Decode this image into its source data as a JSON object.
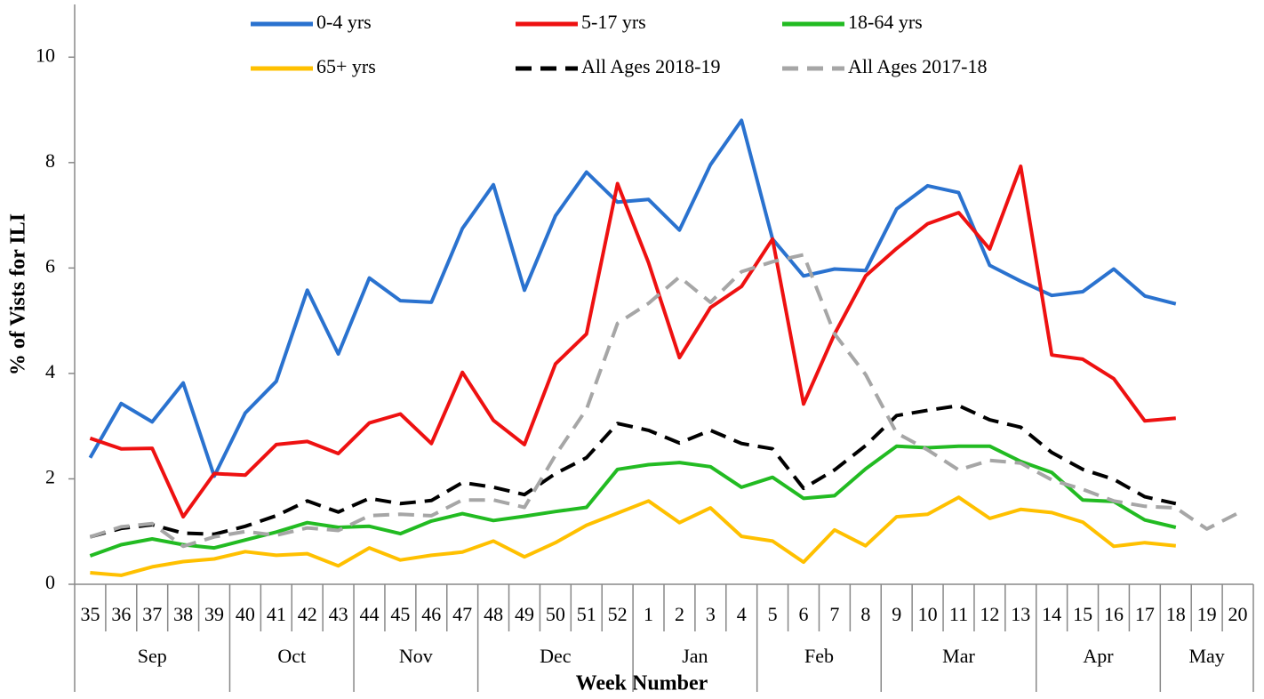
{
  "chart_data": {
    "type": "line",
    "y_label": "% of Vists for ILI",
    "x_label": "Week Number",
    "ylim": [
      0,
      11
    ],
    "yticks": [
      0,
      2,
      4,
      6,
      8,
      10
    ],
    "grid": false,
    "legend": "top",
    "category_groups": [
      {
        "label": "Sep",
        "categories": [
          "35",
          "36",
          "37",
          "38",
          "39"
        ]
      },
      {
        "label": "Oct",
        "categories": [
          "40",
          "41",
          "42",
          "43"
        ]
      },
      {
        "label": "Nov",
        "categories": [
          "44",
          "45",
          "46",
          "47"
        ]
      },
      {
        "label": "Dec",
        "categories": [
          "48",
          "49",
          "50",
          "51",
          "52"
        ]
      },
      {
        "label": "Jan",
        "categories": [
          "1",
          "2",
          "3",
          "4"
        ]
      },
      {
        "label": "Feb",
        "categories": [
          "5",
          "6",
          "7",
          "8"
        ]
      },
      {
        "label": "Mar",
        "categories": [
          "9",
          "10",
          "11",
          "12",
          "13"
        ]
      },
      {
        "label": "Apr",
        "categories": [
          "14",
          "15",
          "16",
          "17"
        ]
      },
      {
        "label": "May",
        "categories": [
          "18",
          "19",
          "20"
        ]
      }
    ],
    "series": [
      {
        "name": "0-4 yrs",
        "color": "#2a72cf",
        "dashed": false,
        "values": [
          2.4,
          3.43,
          3.08,
          3.82,
          2.05,
          3.25,
          3.85,
          5.58,
          4.37,
          5.81,
          5.38,
          5.35,
          6.75,
          7.58,
          5.58,
          6.99,
          7.82,
          7.25,
          7.3,
          6.72,
          7.96,
          8.8,
          6.55,
          5.85,
          5.98,
          5.95,
          7.12,
          7.56,
          7.43,
          6.05,
          5.75,
          5.48,
          5.55,
          5.98,
          5.47,
          5.32,
          null,
          null
        ]
      },
      {
        "name": "5-17 yrs",
        "color": "#ee1111",
        "dashed": false,
        "values": [
          2.77,
          2.57,
          2.58,
          1.28,
          2.1,
          2.07,
          2.65,
          2.71,
          2.48,
          3.06,
          3.23,
          2.67,
          4.02,
          3.11,
          2.65,
          4.18,
          4.75,
          7.6,
          6.1,
          4.3,
          5.25,
          5.65,
          6.55,
          3.42,
          4.75,
          5.85,
          6.37,
          6.84,
          7.05,
          6.36,
          7.93,
          4.35,
          4.27,
          3.9,
          3.1,
          3.15,
          null,
          null
        ]
      },
      {
        "name": "18-64 yrs",
        "color": "#22bb22",
        "dashed": false,
        "values": [
          0.54,
          0.75,
          0.86,
          0.75,
          0.69,
          0.84,
          0.99,
          1.17,
          1.08,
          1.1,
          0.96,
          1.2,
          1.34,
          1.21,
          1.29,
          1.38,
          1.46,
          2.18,
          2.27,
          2.31,
          2.23,
          1.84,
          2.03,
          1.63,
          1.68,
          2.19,
          2.62,
          2.59,
          2.62,
          2.62,
          2.33,
          2.12,
          1.6,
          1.57,
          1.22,
          1.08,
          null,
          null
        ]
      },
      {
        "name": "65+ yrs",
        "color": "#ffc000",
        "dashed": false,
        "values": [
          0.22,
          0.17,
          0.33,
          0.43,
          0.48,
          0.62,
          0.55,
          0.58,
          0.35,
          0.69,
          0.46,
          0.55,
          0.61,
          0.82,
          0.52,
          0.79,
          1.12,
          1.35,
          1.58,
          1.17,
          1.45,
          0.91,
          0.82,
          0.42,
          1.03,
          0.73,
          1.28,
          1.33,
          1.65,
          1.25,
          1.42,
          1.36,
          1.18,
          0.72,
          0.79,
          0.73,
          null,
          null
        ]
      },
      {
        "name": "All Ages 2018-19",
        "color": "#000000",
        "dashed": true,
        "values": [
          0.9,
          1.06,
          1.13,
          0.97,
          0.95,
          1.1,
          1.3,
          1.58,
          1.37,
          1.63,
          1.53,
          1.59,
          1.93,
          1.84,
          1.7,
          2.1,
          2.4,
          3.05,
          2.92,
          2.68,
          2.92,
          2.67,
          2.57,
          1.82,
          2.17,
          2.63,
          3.2,
          3.3,
          3.39,
          3.12,
          2.98,
          2.5,
          2.18,
          1.99,
          1.66,
          1.53,
          null,
          null
        ]
      },
      {
        "name": "All Ages 2017-18",
        "color": "#a6a6a6",
        "dashed": true,
        "values": [
          0.9,
          1.09,
          1.15,
          0.72,
          0.9,
          1.0,
          0.93,
          1.07,
          1.02,
          1.3,
          1.33,
          1.3,
          1.6,
          1.6,
          1.46,
          2.45,
          3.32,
          4.95,
          5.33,
          5.83,
          5.35,
          5.93,
          6.12,
          6.25,
          4.75,
          3.98,
          2.87,
          2.55,
          2.17,
          2.35,
          2.3,
          1.98,
          1.8,
          1.58,
          1.48,
          1.45,
          1.05,
          1.35
        ]
      }
    ]
  }
}
